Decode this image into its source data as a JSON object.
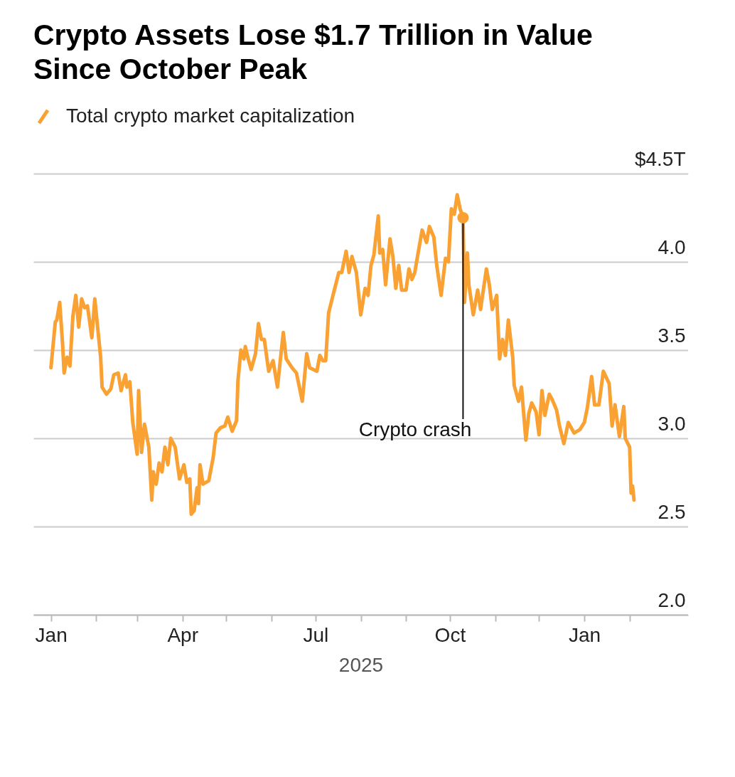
{
  "chart_data": {
    "type": "line",
    "title": "Crypto Assets Lose $1.7 Trillion in Value Since October Peak",
    "xlabel": "2025",
    "legend": "top left",
    "grid": "y",
    "xlim": [
      "2024-12-20",
      "2026-03-13"
    ],
    "ylim": [
      2.0,
      4.5
    ],
    "xticks": [
      {
        "value": "2025-01-01",
        "label": "Jan"
      },
      {
        "value": "2025-02-01",
        "label": null
      },
      {
        "value": "2025-03-01",
        "label": null
      },
      {
        "value": "2025-04-01",
        "label": "Apr"
      },
      {
        "value": "2025-05-01",
        "label": null
      },
      {
        "value": "2025-06-01",
        "label": null
      },
      {
        "value": "2025-07-01",
        "label": "Jul"
      },
      {
        "value": "2025-08-01",
        "label": null
      },
      {
        "value": "2025-09-01",
        "label": null
      },
      {
        "value": "2025-10-01",
        "label": "Oct"
      },
      {
        "value": "2025-11-01",
        "label": null
      },
      {
        "value": "2025-12-01",
        "label": null
      },
      {
        "value": "2026-01-01",
        "label": "Jan"
      },
      {
        "value": "2026-02-01",
        "label": null
      }
    ],
    "yticks": [
      {
        "value": 2.0,
        "label": "2.0"
      },
      2.5,
      {
        "value": 3.0,
        "label": "3.0"
      },
      3.5,
      {
        "value": 4.0,
        "label": "4.0"
      },
      {
        "value": 4.5,
        "label": "$4.5T"
      }
    ],
    "annotations": [
      {
        "text": "Crypto crash",
        "x": "2025-10-10",
        "y": 4.25
      }
    ],
    "x": [
      "2025-01-01",
      "2025-01-04",
      "2025-01-05",
      "2025-01-07",
      "2025-01-09",
      "2025-01-10",
      "2025-01-12",
      "2025-01-14",
      "2025-01-16",
      "2025-01-18",
      "2025-01-20",
      "2025-01-22",
      "2025-01-24",
      "2025-01-26",
      "2025-01-29",
      "2025-01-31",
      "2025-02-04",
      "2025-02-05",
      "2025-02-08",
      "2025-02-11",
      "2025-02-13",
      "2025-02-16",
      "2025-02-18",
      "2025-02-21",
      "2025-02-22",
      "2025-02-24",
      "2025-02-26",
      "2025-03-01",
      "2025-03-02",
      "2025-03-04",
      "2025-03-06",
      "2025-03-09",
      "2025-03-11",
      "2025-03-12",
      "2025-03-14",
      "2025-03-16",
      "2025-03-18",
      "2025-03-20",
      "2025-03-22",
      "2025-03-24",
      "2025-03-27",
      "2025-03-30",
      "2025-04-02",
      "2025-04-04",
      "2025-04-06",
      "2025-04-07",
      "2025-04-09",
      "2025-04-11",
      "2025-04-12",
      "2025-04-13",
      "2025-04-15",
      "2025-04-19",
      "2025-04-22",
      "2025-04-24",
      "2025-04-27",
      "2025-04-30",
      "2025-05-02",
      "2025-05-05",
      "2025-05-08",
      "2025-05-09",
      "2025-05-11",
      "2025-05-13",
      "2025-05-14",
      "2025-05-16",
      "2025-05-18",
      "2025-05-21",
      "2025-05-23",
      "2025-05-25",
      "2025-05-27",
      "2025-05-30",
      "2025-06-02",
      "2025-06-05",
      "2025-06-09",
      "2025-06-11",
      "2025-06-15",
      "2025-06-18",
      "2025-06-22",
      "2025-06-25",
      "2025-06-27",
      "2025-07-02",
      "2025-07-04",
      "2025-07-06",
      "2025-07-08",
      "2025-07-10",
      "2025-07-13",
      "2025-07-17",
      "2025-07-19",
      "2025-07-22",
      "2025-07-24",
      "2025-07-26",
      "2025-07-29",
      "2025-08-01",
      "2025-08-04",
      "2025-08-06",
      "2025-08-08",
      "2025-08-10",
      "2025-08-13",
      "2025-08-14",
      "2025-08-16",
      "2025-08-18",
      "2025-08-21",
      "2025-08-23",
      "2025-08-25",
      "2025-08-27",
      "2025-08-29",
      "2025-09-01",
      "2025-09-03",
      "2025-09-05",
      "2025-09-07",
      "2025-09-08",
      "2025-09-12",
      "2025-09-15",
      "2025-09-17",
      "2025-09-20",
      "2025-09-22",
      "2025-09-25",
      "2025-09-28",
      "2025-09-30",
      "2025-10-02",
      "2025-10-04",
      "2025-10-06",
      "2025-10-08",
      "2025-10-10",
      "2025-10-11",
      "2025-10-13",
      "2025-10-14",
      "2025-10-17",
      "2025-10-20",
      "2025-10-22",
      "2025-10-23",
      "2025-10-26",
      "2025-10-28",
      "2025-10-30",
      "2025-11-02",
      "2025-11-04",
      "2025-11-06",
      "2025-11-08",
      "2025-11-10",
      "2025-11-13",
      "2025-11-14",
      "2025-11-17",
      "2025-11-19",
      "2025-11-22",
      "2025-11-24",
      "2025-11-26",
      "2025-11-29",
      "2025-12-01",
      "2025-12-03",
      "2025-12-05",
      "2025-12-08",
      "2025-12-10",
      "2025-12-13",
      "2025-12-15",
      "2025-12-18",
      "2025-12-21",
      "2025-12-25",
      "2025-12-29",
      "2026-01-01",
      "2026-01-03",
      "2026-01-06",
      "2026-01-08",
      "2026-01-11",
      "2026-01-14",
      "2026-01-18",
      "2026-01-20",
      "2026-01-22",
      "2026-01-25",
      "2026-01-28",
      "2026-01-29",
      "2026-02-01",
      "2026-02-02",
      "2026-02-03",
      "2026-02-04"
    ],
    "series": [
      {
        "name": "Total crypto market capitalization",
        "color": "#f9a132",
        "values": [
          3.4,
          3.66,
          3.67,
          3.77,
          3.53,
          3.37,
          3.46,
          3.41,
          3.69,
          3.81,
          3.63,
          3.79,
          3.74,
          3.75,
          3.57,
          3.79,
          3.46,
          3.29,
          3.25,
          3.28,
          3.36,
          3.37,
          3.27,
          3.36,
          3.29,
          3.32,
          3.09,
          2.91,
          3.27,
          2.92,
          3.08,
          2.95,
          2.65,
          2.81,
          2.74,
          2.86,
          2.81,
          2.95,
          2.85,
          3.0,
          2.95,
          2.77,
          2.85,
          2.75,
          2.77,
          2.57,
          2.59,
          2.72,
          2.63,
          2.85,
          2.74,
          2.76,
          2.89,
          3.03,
          3.06,
          3.07,
          3.12,
          3.04,
          3.1,
          3.33,
          3.5,
          3.45,
          3.52,
          3.45,
          3.39,
          3.48,
          3.65,
          3.56,
          3.56,
          3.38,
          3.44,
          3.29,
          3.6,
          3.45,
          3.4,
          3.37,
          3.21,
          3.48,
          3.4,
          3.38,
          3.47,
          3.44,
          3.44,
          3.71,
          3.81,
          3.94,
          3.94,
          4.06,
          3.94,
          4.03,
          3.94,
          3.7,
          3.85,
          3.81,
          3.98,
          4.04,
          4.26,
          4.05,
          4.07,
          3.87,
          4.13,
          4.03,
          3.85,
          3.98,
          3.84,
          3.84,
          3.96,
          3.9,
          3.94,
          3.99,
          4.18,
          4.11,
          4.2,
          4.14,
          3.98,
          3.81,
          4.02,
          4.0,
          4.3,
          4.27,
          4.38,
          4.3,
          4.25,
          3.77,
          4.05,
          3.87,
          3.7,
          3.84,
          3.73,
          3.79,
          3.96,
          3.87,
          3.73,
          3.81,
          3.45,
          3.56,
          3.47,
          3.67,
          3.46,
          3.3,
          3.21,
          3.29,
          2.99,
          3.14,
          3.2,
          3.15,
          3.02,
          3.27,
          3.13,
          3.25,
          3.22,
          3.16,
          3.07,
          2.97,
          3.09,
          3.03,
          3.05,
          3.09,
          3.17,
          3.35,
          3.19,
          3.19,
          3.38,
          3.31,
          3.07,
          3.19,
          3.01,
          3.18,
          3.0,
          2.95,
          2.69,
          2.73,
          2.65
        ]
      }
    ]
  }
}
